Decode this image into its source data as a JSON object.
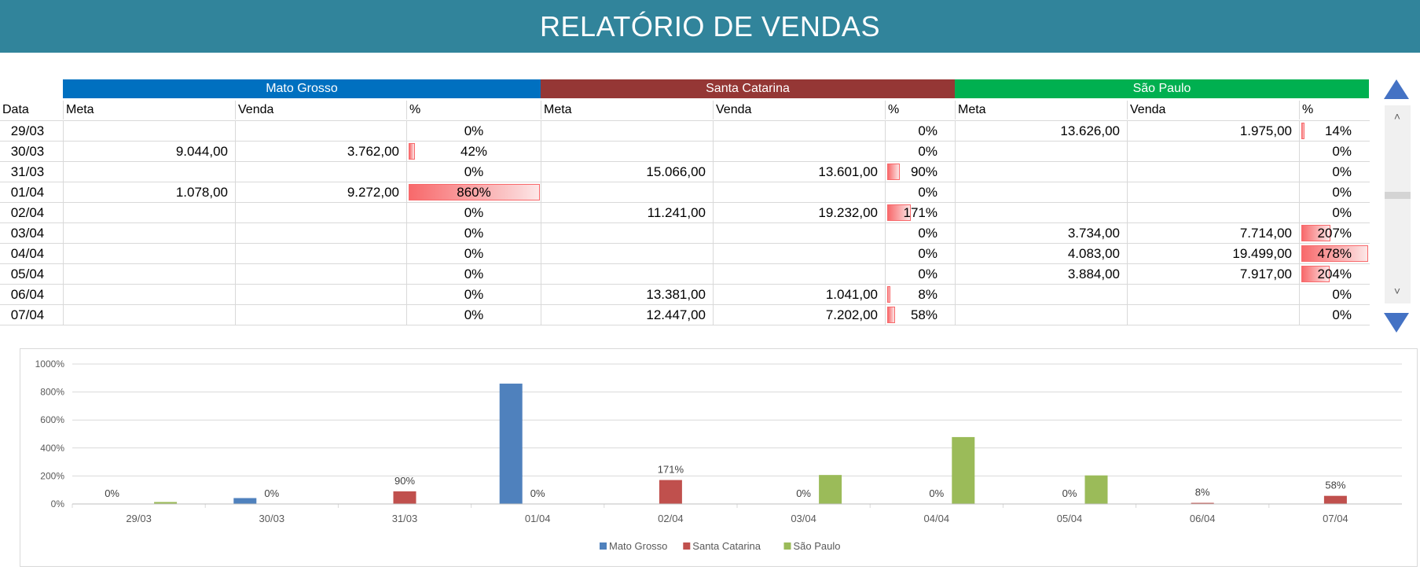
{
  "banner": {
    "title": "RELATÓRIO DE VENDAS"
  },
  "table": {
    "date_header": "Data",
    "regions": [
      {
        "name": "Mato Grosso",
        "color": "#0070c0"
      },
      {
        "name": "Santa Catarina",
        "color": "#953735"
      },
      {
        "name": "São Paulo",
        "color": "#00b050"
      }
    ],
    "col_headers": [
      "Meta",
      "Venda",
      "%"
    ],
    "rows": [
      {
        "date": "29/03",
        "mg": [
          "",
          "",
          "0%"
        ],
        "sc": [
          "",
          "",
          "0%"
        ],
        "sp": [
          "13.626,00",
          "1.975,00",
          "14%"
        ]
      },
      {
        "date": "30/03",
        "mg": [
          "9.044,00",
          "3.762,00",
          "42%"
        ],
        "sc": [
          "",
          "",
          "0%"
        ],
        "sp": [
          "",
          "",
          "0%"
        ]
      },
      {
        "date": "31/03",
        "mg": [
          "",
          "",
          "0%"
        ],
        "sc": [
          "15.066,00",
          "13.601,00",
          "90%"
        ],
        "sp": [
          "",
          "",
          "0%"
        ]
      },
      {
        "date": "01/04",
        "mg": [
          "1.078,00",
          "9.272,00",
          "860%"
        ],
        "sc": [
          "",
          "",
          "0%"
        ],
        "sp": [
          "",
          "",
          "0%"
        ]
      },
      {
        "date": "02/04",
        "mg": [
          "",
          "",
          "0%"
        ],
        "sc": [
          "11.241,00",
          "19.232,00",
          "171%"
        ],
        "sp": [
          "",
          "",
          "0%"
        ]
      },
      {
        "date": "03/04",
        "mg": [
          "",
          "",
          "0%"
        ],
        "sc": [
          "",
          "",
          "0%"
        ],
        "sp": [
          "3.734,00",
          "7.714,00",
          "207%"
        ]
      },
      {
        "date": "04/04",
        "mg": [
          "",
          "",
          "0%"
        ],
        "sc": [
          "",
          "",
          "0%"
        ],
        "sp": [
          "4.083,00",
          "19.499,00",
          "478%"
        ]
      },
      {
        "date": "05/04",
        "mg": [
          "",
          "",
          "0%"
        ],
        "sc": [
          "",
          "",
          "0%"
        ],
        "sp": [
          "3.884,00",
          "7.917,00",
          "204%"
        ]
      },
      {
        "date": "06/04",
        "mg": [
          "",
          "",
          "0%"
        ],
        "sc": [
          "13.381,00",
          "1.041,00",
          "8%"
        ],
        "sp": [
          "",
          "",
          "0%"
        ]
      },
      {
        "date": "07/04",
        "mg": [
          "",
          "",
          "0%"
        ],
        "sc": [
          "12.447,00",
          "7.202,00",
          "58%"
        ],
        "sp": [
          "",
          "",
          "0%"
        ]
      }
    ]
  },
  "scroll": {
    "up_icon": "triangle-up-icon",
    "down_icon": "triangle-down-icon"
  },
  "chart_data": {
    "type": "bar",
    "title": "",
    "xlabel": "",
    "ylabel": "",
    "categories": [
      "29/03",
      "30/03",
      "31/03",
      "01/04",
      "02/04",
      "03/04",
      "04/04",
      "05/04",
      "06/04",
      "07/04"
    ],
    "ylim": [
      0,
      1000
    ],
    "yticks": [
      "0%",
      "200%",
      "400%",
      "600%",
      "800%",
      "1000%"
    ],
    "grid": true,
    "legend_position": "bottom",
    "series": [
      {
        "name": "Mato Grosso",
        "color": "#4f81bd",
        "values": [
          0,
          42,
          0,
          860,
          0,
          0,
          0,
          0,
          0,
          0
        ],
        "labels": [
          "0%",
          "",
          "",
          "",
          "",
          "",
          "",
          "",
          "",
          ""
        ]
      },
      {
        "name": "Santa Catarina",
        "color": "#c0504d",
        "values": [
          0,
          0,
          90,
          0,
          171,
          0,
          0,
          0,
          8,
          58
        ],
        "labels": [
          "",
          "0%",
          "90%",
          "0%",
          "171%",
          "0%",
          "0%",
          "0%",
          "8%",
          "58%"
        ]
      },
      {
        "name": "São Paulo",
        "color": "#9bbb59",
        "values": [
          14,
          0,
          0,
          0,
          0,
          207,
          478,
          204,
          0,
          0
        ],
        "labels": [
          "",
          "",
          "",
          "",
          "",
          "",
          "",
          "",
          "",
          ""
        ]
      }
    ]
  }
}
